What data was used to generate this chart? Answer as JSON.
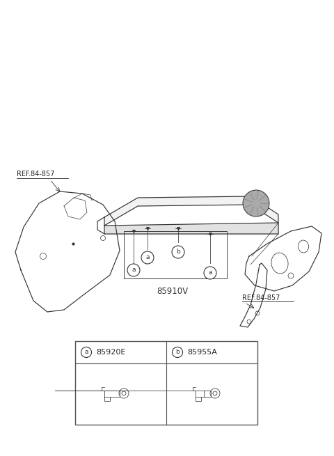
{
  "bg_color": "#ffffff",
  "line_color": "#333333",
  "ref_label": "REF.84-857",
  "part_label_main": "85910V",
  "part_a_code": "85920E",
  "part_b_code": "85955A",
  "fig_width": 4.8,
  "fig_height": 6.55,
  "dpi": 100
}
